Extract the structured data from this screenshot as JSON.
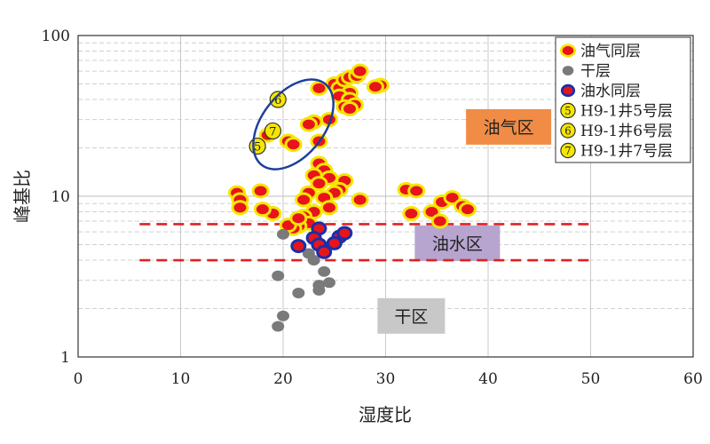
{
  "chart_data": {
    "type": "scatter",
    "xlabel": "湿度比",
    "ylabel": "峰基比",
    "xlim": [
      0,
      60
    ],
    "ylim": [
      1,
      100
    ],
    "y_scale": "log",
    "grid": true,
    "x_ticks": [
      "0",
      "10",
      "20",
      "30",
      "40",
      "50",
      "60"
    ],
    "y_ticks": [
      {
        "value": 1,
        "label": "1"
      },
      {
        "value": 10,
        "label": "10"
      },
      {
        "value": 100,
        "label": "100"
      }
    ],
    "legend_position": "top-right",
    "legend": [
      {
        "label": "油气同层",
        "marker": "oil-gas"
      },
      {
        "label": "干层",
        "marker": "dry"
      },
      {
        "label": "油水同层",
        "marker": "oil-water"
      },
      {
        "label": "H9-1井5号层",
        "marker": "well",
        "num": "5"
      },
      {
        "label": "H9-1井6号层",
        "marker": "well",
        "num": "6"
      },
      {
        "label": "H9-1井7号层",
        "marker": "well",
        "num": "7"
      }
    ],
    "regions": [
      {
        "label": "油气区",
        "x": 42,
        "y": 27,
        "color": "#f08c46"
      },
      {
        "label": "油水区",
        "x": 37,
        "y": 5.1,
        "color": "#b7a4cf"
      },
      {
        "label": "干区",
        "x": 32.5,
        "y": 1.8,
        "color": "#c8c8c8"
      }
    ],
    "threshold_lines": [
      {
        "y": 6.7,
        "x_range": [
          6,
          50
        ],
        "color": "#e02020"
      },
      {
        "y": 4.0,
        "x_range": [
          6,
          50
        ],
        "color": "#e02020"
      }
    ],
    "highlight_ellipse": {
      "cx": 21,
      "cy": 28,
      "color": "#1f3f9a"
    },
    "colors": {
      "oil_gas_fill": "#e8141b",
      "oil_gas_ring": "#f5e600",
      "dry": "#7a7a7a",
      "oil_water_fill": "#e8141b",
      "oil_water_ring": "#1a2fa8",
      "well_fill": "#f5e600"
    },
    "series": [
      {
        "name": "油气同层",
        "marker": "oil-gas",
        "points": [
          [
            23.5,
            47
          ],
          [
            25,
            50
          ],
          [
            25.5,
            47
          ],
          [
            26,
            53
          ],
          [
            26.5,
            55
          ],
          [
            27.2,
            56
          ],
          [
            27.5,
            60
          ],
          [
            26.5,
            44
          ],
          [
            25.5,
            42
          ],
          [
            26.5,
            40
          ],
          [
            26,
            36
          ],
          [
            27,
            37
          ],
          [
            26.5,
            35
          ],
          [
            29.5,
            49
          ],
          [
            29,
            48
          ],
          [
            23,
            29
          ],
          [
            24.5,
            30
          ],
          [
            22.5,
            28
          ],
          [
            23.5,
            22
          ],
          [
            20.5,
            22
          ],
          [
            21,
            21
          ],
          [
            18.5,
            24
          ],
          [
            23.5,
            16
          ],
          [
            24,
            14.5
          ],
          [
            23,
            13.5
          ],
          [
            24.5,
            13
          ],
          [
            23.5,
            12
          ],
          [
            26,
            12.5
          ],
          [
            25.5,
            11
          ],
          [
            25,
            10.5
          ],
          [
            22.5,
            10.5
          ],
          [
            22,
            9.5
          ],
          [
            24,
            9.8
          ],
          [
            27.5,
            9.5
          ],
          [
            24.5,
            8.5
          ],
          [
            23,
            8
          ],
          [
            22,
            7.5
          ],
          [
            22.5,
            6.8
          ],
          [
            21.5,
            6.5
          ],
          [
            21,
            6.3
          ],
          [
            20.5,
            6.6
          ],
          [
            21.5,
            7.3
          ],
          [
            19,
            7.8
          ],
          [
            18,
            8.3
          ],
          [
            15.5,
            10.5
          ],
          [
            15.8,
            9.5
          ],
          [
            15.8,
            8.5
          ],
          [
            17.8,
            10.8
          ],
          [
            32,
            11
          ],
          [
            33,
            10.8
          ],
          [
            32.5,
            7.8
          ],
          [
            34.5,
            8
          ],
          [
            35.5,
            9.2
          ],
          [
            36.5,
            9.8
          ],
          [
            37.5,
            8.7
          ],
          [
            38,
            8.3
          ],
          [
            35.3,
            7
          ]
        ]
      },
      {
        "name": "干层",
        "marker": "dry",
        "points": [
          [
            20,
            5.8
          ],
          [
            22.5,
            4.4
          ],
          [
            23,
            4
          ],
          [
            24,
            3.4
          ],
          [
            24.5,
            2.9
          ],
          [
            23.5,
            2.8
          ],
          [
            23.5,
            2.6
          ],
          [
            21.5,
            2.5
          ],
          [
            19.5,
            3.2
          ],
          [
            20,
            1.8
          ],
          [
            19.5,
            1.55
          ]
        ]
      },
      {
        "name": "油水同层",
        "marker": "oil-water",
        "points": [
          [
            23.5,
            6.3
          ],
          [
            25.5,
            5.6
          ],
          [
            26,
            5.9
          ],
          [
            23,
            5.5
          ],
          [
            21.5,
            4.9
          ],
          [
            23.5,
            5.0
          ],
          [
            25,
            5.1
          ],
          [
            24,
            4.5
          ]
        ]
      },
      {
        "name": "H9-1井5号层",
        "marker": "well",
        "num": "5",
        "points": [
          [
            17.5,
            20.5
          ]
        ]
      },
      {
        "name": "H9-1井6号层",
        "marker": "well",
        "num": "6",
        "points": [
          [
            19.5,
            40
          ]
        ]
      },
      {
        "name": "H9-1井7号层",
        "marker": "well",
        "num": "7",
        "points": [
          [
            19,
            25.5
          ]
        ]
      }
    ]
  }
}
